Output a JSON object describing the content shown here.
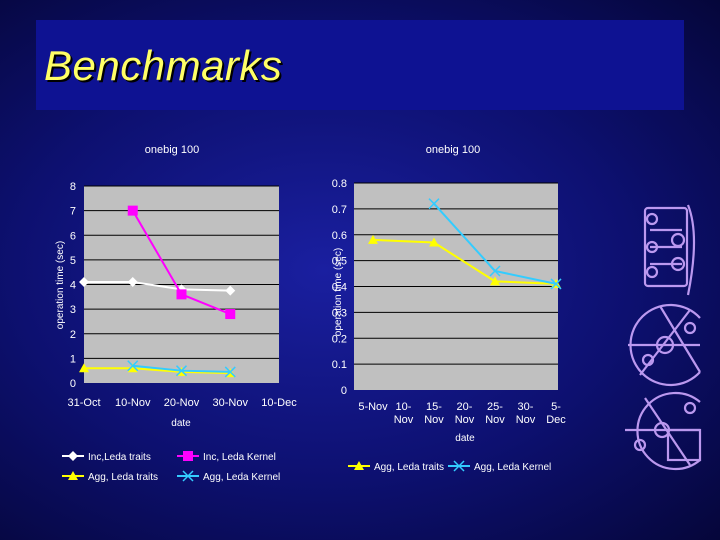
{
  "slide": {
    "title": "Benchmarks"
  },
  "chart_data": [
    {
      "type": "line",
      "title": "onebig 100",
      "xlabel": "date",
      "ylabel": "operation time (sec)",
      "categories": [
        "31-Oct",
        "10-Nov",
        "20-Nov",
        "30-Nov",
        "10-Dec"
      ],
      "ylim": [
        0,
        8
      ],
      "yticks": [
        0,
        1,
        2,
        3,
        4,
        5,
        6,
        7,
        8
      ],
      "grid": "horizontal-major",
      "legend_position": "bottom",
      "series": [
        {
          "name": "Inc,Leda traits",
          "color": "#ffffff",
          "marker": "diamond",
          "values": [
            4.1,
            4.1,
            3.8,
            3.75,
            null
          ]
        },
        {
          "name": "Inc, Leda Kernel",
          "color": "#ff00ff",
          "marker": "square",
          "values": [
            null,
            7.0,
            3.6,
            2.8,
            null
          ]
        },
        {
          "name": "Agg, Leda traits",
          "color": "#ffff00",
          "marker": "triangle",
          "values": [
            0.6,
            0.6,
            0.45,
            0.4,
            null
          ]
        },
        {
          "name": "Agg, Leda Kernel",
          "color": "#33ccff",
          "marker": "x",
          "values": [
            null,
            0.7,
            0.5,
            0.45,
            null
          ]
        }
      ]
    },
    {
      "type": "line",
      "title": "onebig 100",
      "xlabel": "date",
      "ylabel": "operation time (sec)",
      "categories": [
        "5-Nov",
        "10-\nNov",
        "15-\nNov",
        "20-\nNov",
        "25-\nNov",
        "30-\nNov",
        "5-\nDec"
      ],
      "ylim": [
        0,
        0.8
      ],
      "yticks": [
        0,
        0.1,
        0.2,
        0.3,
        0.4,
        0.5,
        0.6,
        0.7,
        0.8
      ],
      "grid": "horizontal-major",
      "legend_position": "bottom",
      "series": [
        {
          "name": "Agg, Leda traits",
          "color": "#ffff00",
          "marker": "triangle",
          "values": [
            0.58,
            null,
            0.57,
            null,
            0.42,
            null,
            0.41
          ]
        },
        {
          "name": "Agg, Leda Kernel",
          "color": "#33ccff",
          "marker": "x",
          "values": [
            null,
            null,
            0.72,
            null,
            0.46,
            null,
            0.41
          ]
        }
      ]
    }
  ],
  "decoration": {
    "logo": "CGAL"
  }
}
